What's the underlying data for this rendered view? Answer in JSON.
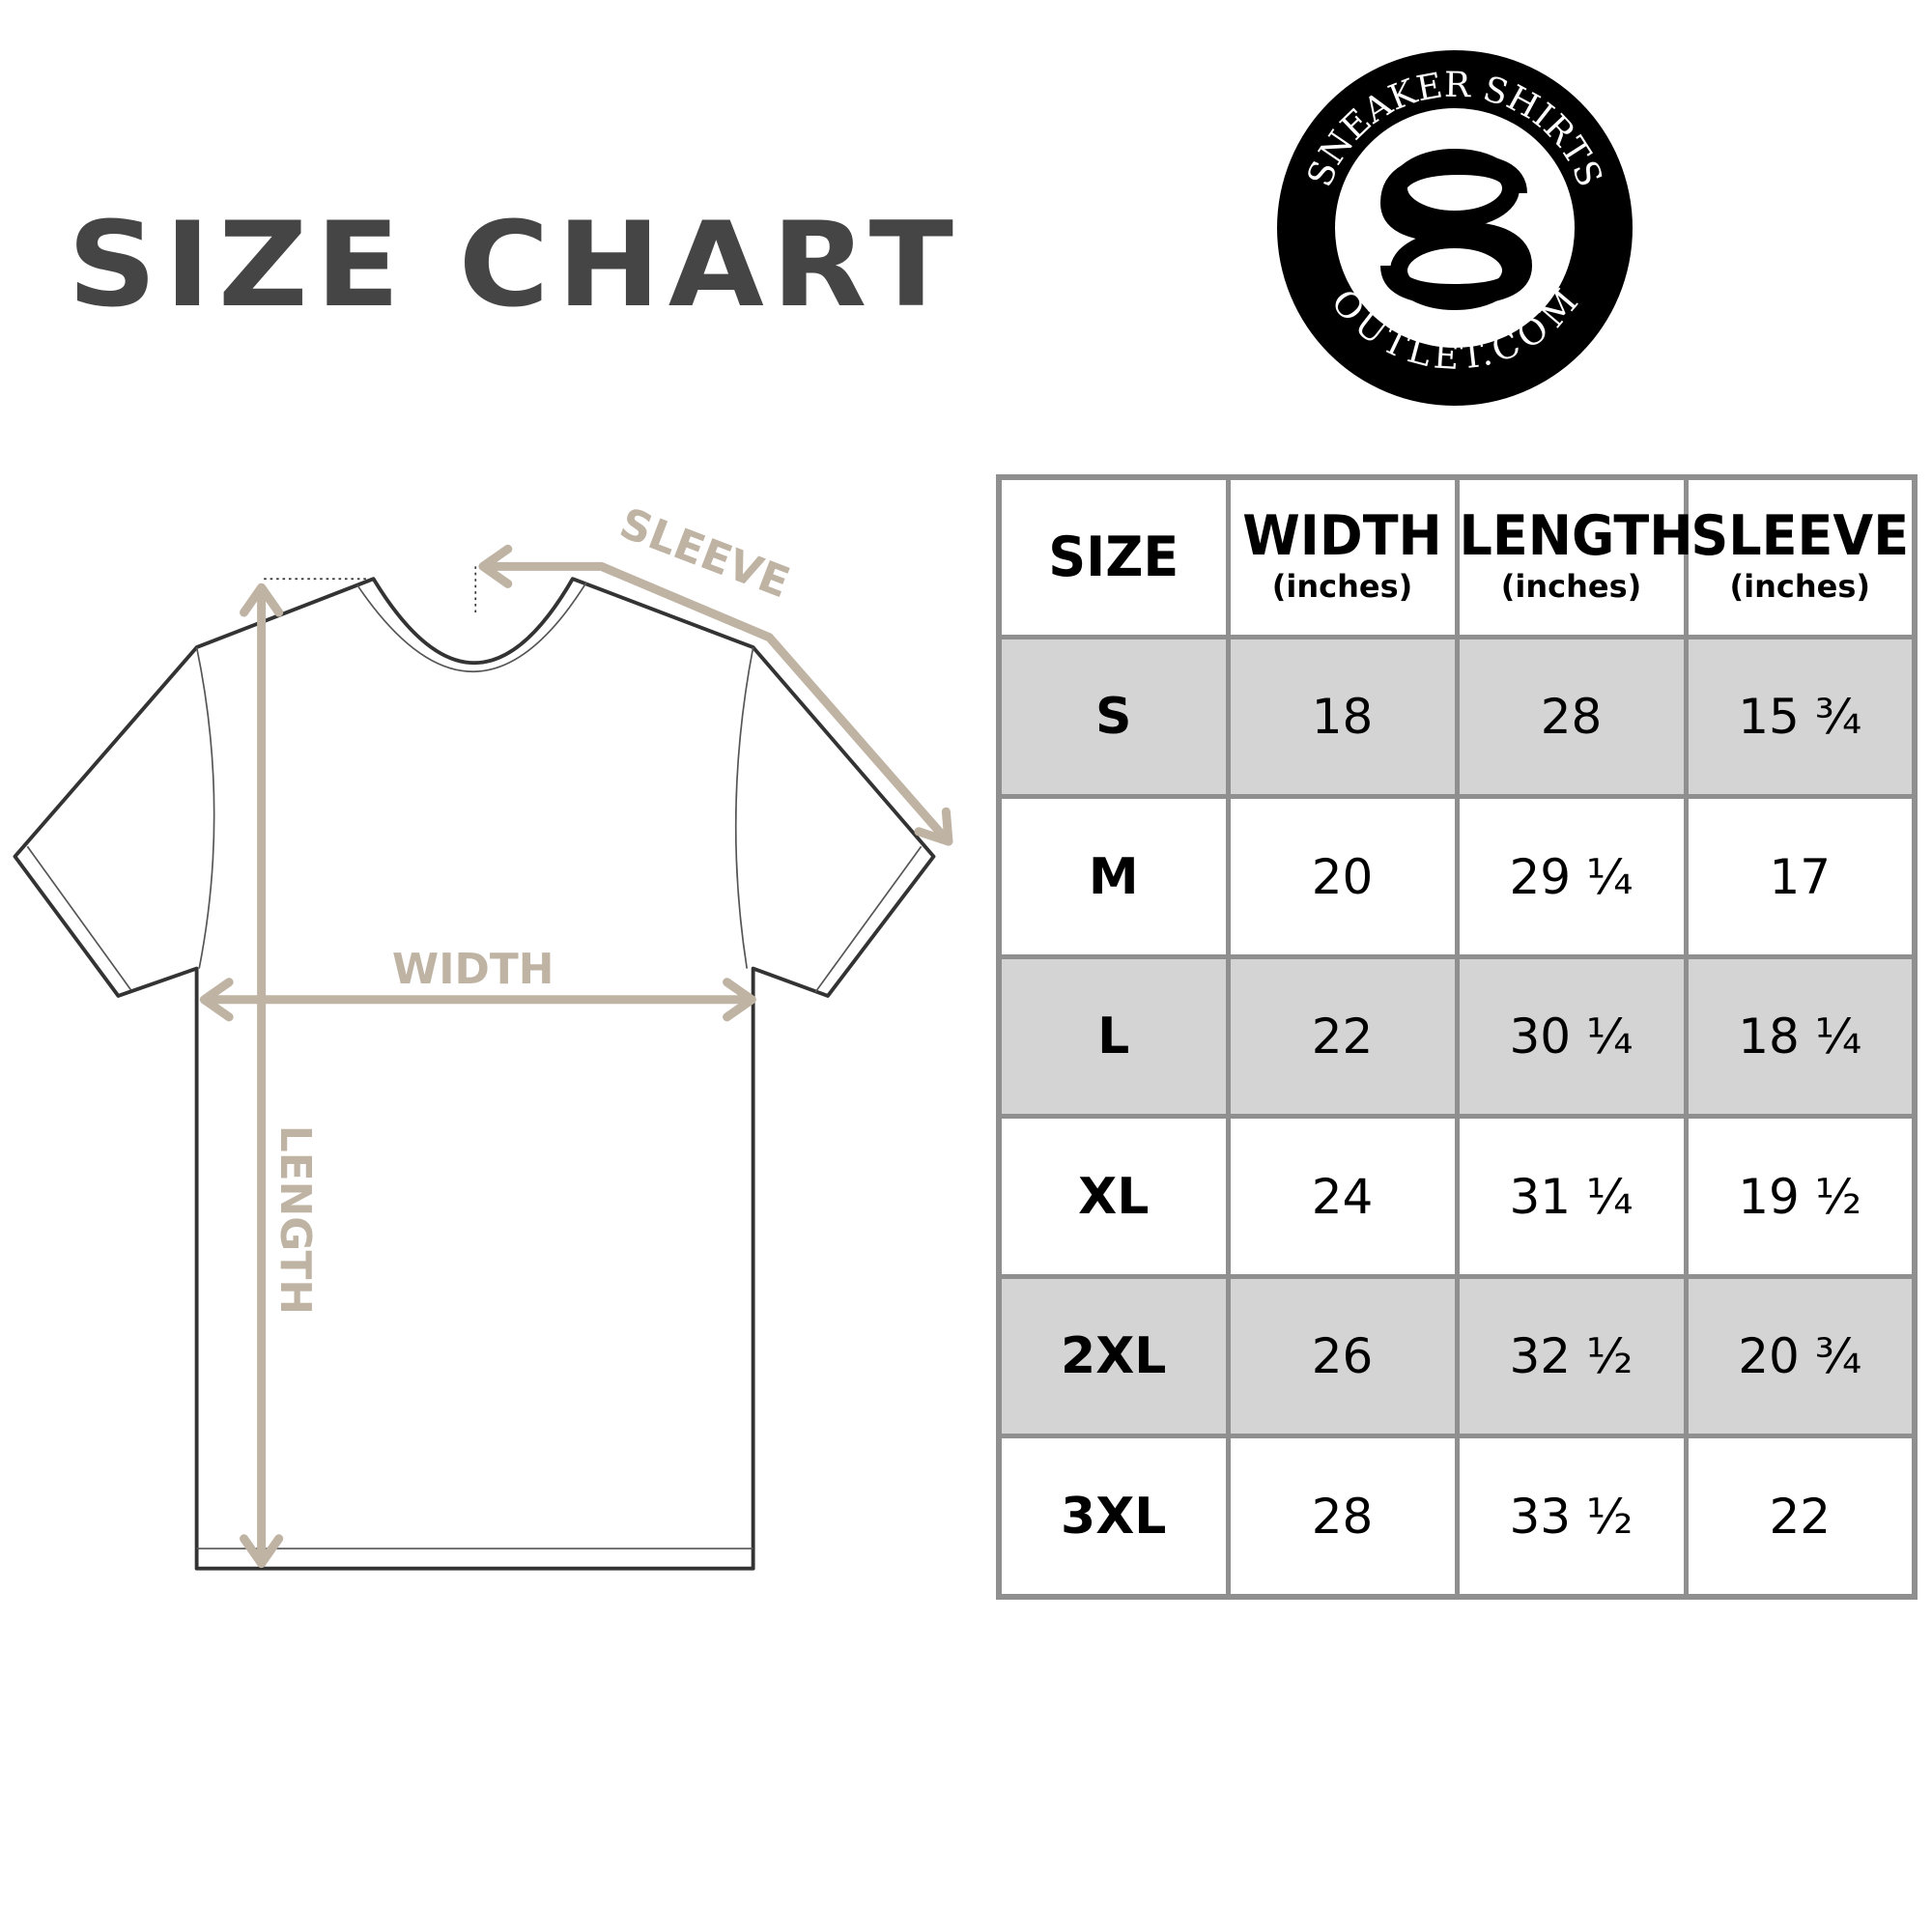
{
  "title": "SIZE CHART",
  "logo": {
    "top_text": "SNEAKER SHIRTS",
    "bottom_text": "OUTLET.COM",
    "monogram": "SO"
  },
  "diagram": {
    "labels": {
      "sleeve": "SLEEVE",
      "width": "WIDTH",
      "length": "LENGTH"
    },
    "colors": {
      "measure": "#bfb3a3",
      "outline": "#333333"
    }
  },
  "table": {
    "headers": [
      {
        "main": "SIZE",
        "sub": ""
      },
      {
        "main": "WIDTH",
        "sub": "(inches)"
      },
      {
        "main": "LENGTH",
        "sub": "(inches)"
      },
      {
        "main": "SLEEVE",
        "sub": "(inches)"
      }
    ],
    "rows": [
      {
        "size": "S",
        "width": "18",
        "length": "28",
        "sleeve": "15 ¾"
      },
      {
        "size": "M",
        "width": "20",
        "length": "29 ¼",
        "sleeve": "17"
      },
      {
        "size": "L",
        "width": "22",
        "length": "30 ¼",
        "sleeve": "18 ¼"
      },
      {
        "size": "XL",
        "width": "24",
        "length": "31 ¼",
        "sleeve": "19 ½"
      },
      {
        "size": "2XL",
        "width": "26",
        "length": "32 ½",
        "sleeve": "20 ¾"
      },
      {
        "size": "3XL",
        "width": "28",
        "length": "33 ½",
        "sleeve": "22"
      }
    ],
    "colors": {
      "shaded_row": "#d4d4d4",
      "border": "#8f8f8f"
    }
  }
}
